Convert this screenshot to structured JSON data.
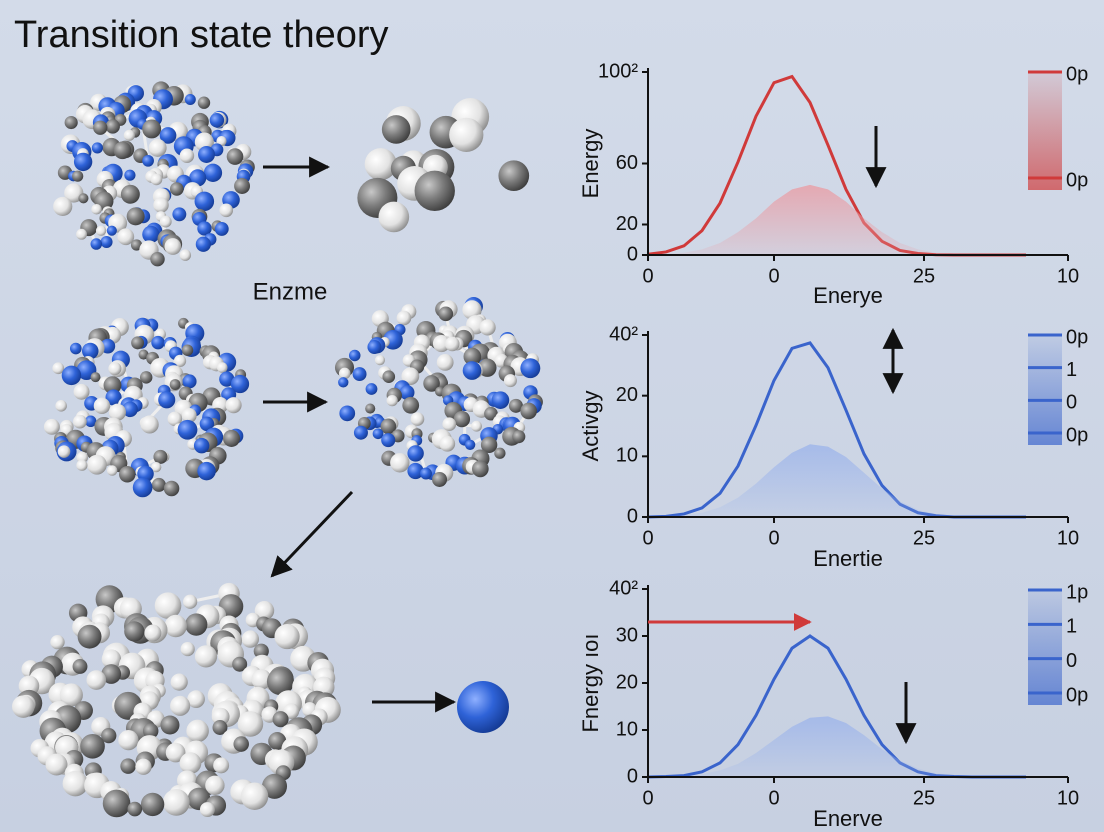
{
  "title": "Transition state theory",
  "label": "Enzme",
  "chart_data": [
    {
      "type": "line",
      "ylabel": "Energy",
      "xlabel": "Enerye",
      "x": [
        -21,
        -18,
        -15,
        -12,
        -9,
        -6,
        -3,
        0,
        3,
        6,
        9,
        12,
        15,
        18,
        21,
        24,
        27,
        30,
        33,
        36,
        39,
        42
      ],
      "xlim": [
        -21,
        49
      ],
      "xticks": [
        {
          "value": -21,
          "label": "0"
        },
        0,
        25,
        {
          "value": 49,
          "label": "10"
        }
      ],
      "ylim": [
        0,
        120
      ],
      "yticks": [
        0,
        20,
        60,
        {
          "value": 120,
          "label": "100²"
        }
      ],
      "color": "#d03a3a",
      "series": [
        {
          "color": "#d03a3a",
          "style": "line",
          "values": [
            0.5,
            2,
            6,
            16,
            34,
            61,
            91,
            113,
            117,
            100,
            72,
            43,
            21,
            9,
            3,
            1,
            0.2,
            0,
            0,
            0,
            0,
            0
          ]
        },
        {
          "color": "#e8a0a8",
          "style": "area",
          "values": [
            0.1,
            0.5,
            1.5,
            3.7,
            7.9,
            15,
            24,
            35,
            43,
            46,
            43,
            35,
            24,
            15,
            7.9,
            3.7,
            1.5,
            0.5,
            0.1,
            0,
            0,
            0
          ]
        }
      ],
      "legend": [
        "0p",
        "0p"
      ]
    },
    {
      "type": "line",
      "ylabel": "Activgy",
      "xlabel": "Enertie",
      "x": [
        -21,
        -18,
        -15,
        -12,
        -9,
        -6,
        -3,
        0,
        3,
        6,
        9,
        12,
        15,
        18,
        21,
        24,
        27,
        30,
        33,
        36,
        39,
        42
      ],
      "xlim": [
        -21,
        49
      ],
      "xticks": [
        {
          "value": -21,
          "label": "0"
        },
        0,
        25,
        {
          "value": 49,
          "label": "10"
        }
      ],
      "ylim": [
        0,
        30
      ],
      "yticks": [
        0,
        10,
        20,
        {
          "value": 30,
          "label": "40²"
        }
      ],
      "color": "#3a64cc",
      "series": [
        {
          "color": "#3a64cc",
          "style": "line",
          "values": [
            0,
            0.1,
            0.5,
            1.5,
            3.9,
            8.4,
            15.1,
            22.5,
            27.8,
            28.7,
            24.6,
            17.6,
            10.4,
            5.2,
            2.1,
            0.7,
            0.2,
            0,
            0,
            0,
            0,
            0
          ]
        },
        {
          "color": "#9fb6ea",
          "style": "area",
          "values": [
            0,
            0.1,
            0.3,
            0.7,
            1.6,
            3.2,
            5.5,
            8.2,
            10.6,
            12,
            11.6,
            9.9,
            7.3,
            4.7,
            2.6,
            1.2,
            0.5,
            0.2,
            0.1,
            0,
            0,
            0
          ]
        }
      ],
      "legend": [
        "0p",
        "1",
        "0",
        "0p"
      ]
    },
    {
      "type": "line",
      "ylabel": "Fnergy ıoı",
      "xlabel": "Enerve",
      "x": [
        -21,
        -18,
        -15,
        -12,
        -9,
        -6,
        -3,
        0,
        3,
        6,
        9,
        12,
        15,
        18,
        21,
        24,
        27,
        30,
        33,
        36,
        39,
        42
      ],
      "xlim": [
        -21,
        49
      ],
      "xticks": [
        {
          "value": -21,
          "label": "0"
        },
        0,
        25,
        {
          "value": 49,
          "label": "10"
        }
      ],
      "ylim": [
        0,
        40
      ],
      "yticks": [
        0,
        10,
        20,
        30,
        {
          "value": 40,
          "label": "40²"
        }
      ],
      "color": "#3a64cc",
      "series": [
        {
          "color": "#3a64cc",
          "style": "line",
          "values": [
            0,
            0.1,
            0.3,
            1.1,
            3,
            6.9,
            13.1,
            20.8,
            27.4,
            30,
            27.4,
            20.8,
            13.1,
            6.9,
            3,
            1.1,
            0.3,
            0.1,
            0,
            0,
            0,
            0
          ]
        },
        {
          "color": "#9fb6ea",
          "style": "area",
          "values": [
            0,
            0.1,
            0.2,
            0.6,
            1.4,
            2.8,
            5.1,
            7.9,
            10.7,
            12.6,
            12.9,
            11.5,
            8.9,
            5.9,
            3.5,
            1.8,
            0.8,
            0.3,
            0.1,
            0,
            0,
            0
          ]
        }
      ],
      "legend": [
        "1p",
        "1",
        "0",
        "0p"
      ]
    }
  ]
}
